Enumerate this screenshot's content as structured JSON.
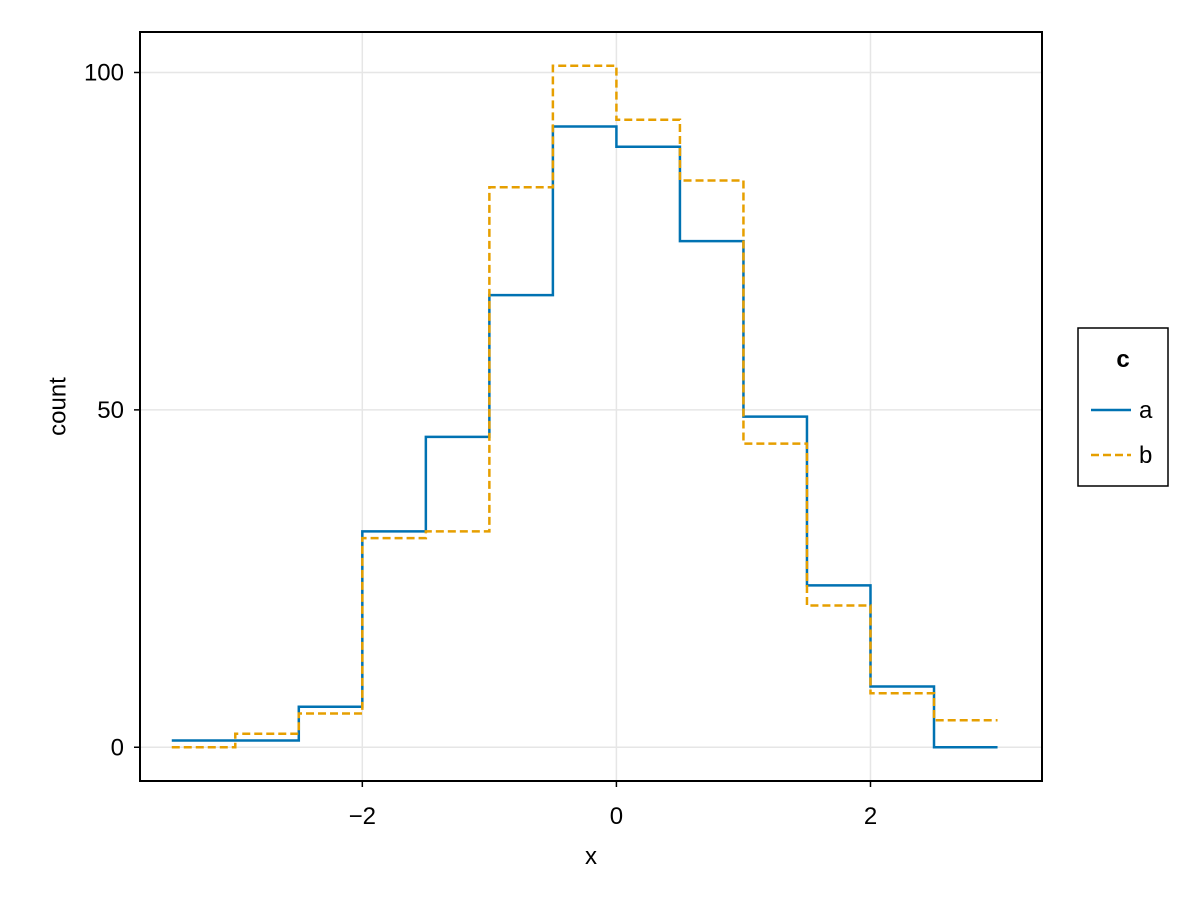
{
  "chart_data": {
    "type": "line",
    "subtype": "stairstep histogram",
    "xlabel": "x",
    "ylabel": "count",
    "xlim": [
      -3.75,
      3.35
    ],
    "ylim": [
      -5,
      106
    ],
    "xticks": [
      -2,
      0,
      2
    ],
    "xtick_labels": [
      "−2",
      "0",
      "2"
    ],
    "yticks": [
      0,
      50,
      100
    ],
    "ytick_labels": [
      "0",
      "50",
      "100"
    ],
    "grid": true,
    "legend": {
      "title": "c",
      "position": "right"
    },
    "bin_edges": [
      -3.5,
      -3.0,
      -2.5,
      -2.0,
      -1.5,
      -1.0,
      -0.5,
      0.0,
      0.5,
      1.0,
      1.5,
      2.0,
      2.5,
      3.0
    ],
    "series": [
      {
        "name": "a",
        "color": "#0072B2",
        "dash": "solid",
        "values": [
          1,
          1,
          6,
          32,
          46,
          67,
          92,
          89,
          75,
          49,
          24,
          9,
          0
        ]
      },
      {
        "name": "b",
        "color": "#E69F00",
        "dash": "dashed",
        "values": [
          0,
          2,
          5,
          31,
          32,
          83,
          101,
          93,
          84,
          45,
          21,
          8,
          4
        ]
      }
    ]
  }
}
